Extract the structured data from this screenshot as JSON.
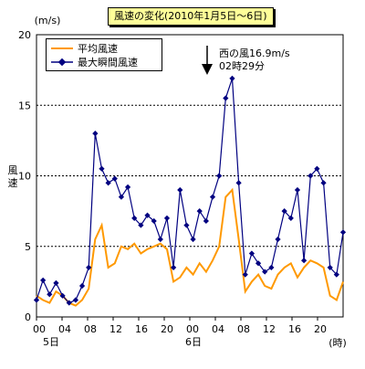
{
  "chart_data": {
    "type": "line",
    "title": "風速の変化(2010年1月5日～6日)",
    "ylabel": "風速",
    "yunit": "(m/s)",
    "xunit": "(時)",
    "ylim": [
      0,
      20
    ],
    "yticks": [
      0,
      5,
      10,
      15,
      20
    ],
    "grid": "horizontal-dashed",
    "legend_position": "top-left",
    "xticks": [
      "00",
      "04",
      "08",
      "12",
      "16",
      "20",
      "00",
      "04",
      "08",
      "12",
      "16",
      "20"
    ],
    "day_labels": [
      "5日",
      "6日"
    ],
    "annotation": {
      "line1": "西の風16.9m/s",
      "line2": "02時29分"
    },
    "values_note": "Series values are approximate, estimated from the image.",
    "series": [
      {
        "name": "平均風速",
        "color": "#ff9900",
        "values": [
          1.5,
          1.2,
          1.0,
          1.8,
          1.5,
          1.0,
          0.8,
          1.2,
          2.0,
          5.5,
          6.5,
          3.5,
          3.8,
          5.0,
          4.8,
          5.2,
          4.5,
          4.8,
          5.0,
          5.2,
          4.8,
          2.5,
          2.8,
          3.5,
          3.0,
          3.8,
          3.2,
          4.0,
          5.0,
          8.5,
          9.0,
          5.5,
          1.8,
          2.5,
          3.0,
          2.2,
          2.0,
          3.0,
          3.5,
          3.8,
          2.8,
          3.5,
          4.0,
          3.8,
          3.5,
          1.5,
          1.2,
          2.5
        ]
      },
      {
        "name": "最大瞬間風速",
        "color": "#000080",
        "values": [
          1.2,
          2.6,
          1.6,
          2.4,
          1.5,
          1.0,
          1.2,
          2.2,
          3.5,
          13.0,
          10.5,
          9.5,
          9.8,
          8.5,
          9.2,
          7.0,
          6.5,
          7.2,
          6.8,
          5.5,
          7.0,
          3.5,
          9.0,
          6.5,
          5.5,
          7.5,
          6.8,
          8.5,
          10.0,
          15.5,
          16.9,
          9.5,
          3.0,
          4.5,
          3.8,
          3.2,
          3.5,
          5.5,
          7.5,
          7.0,
          9.0,
          4.0,
          10.0,
          10.5,
          9.5,
          3.5,
          3.0,
          6.0
        ]
      }
    ]
  }
}
